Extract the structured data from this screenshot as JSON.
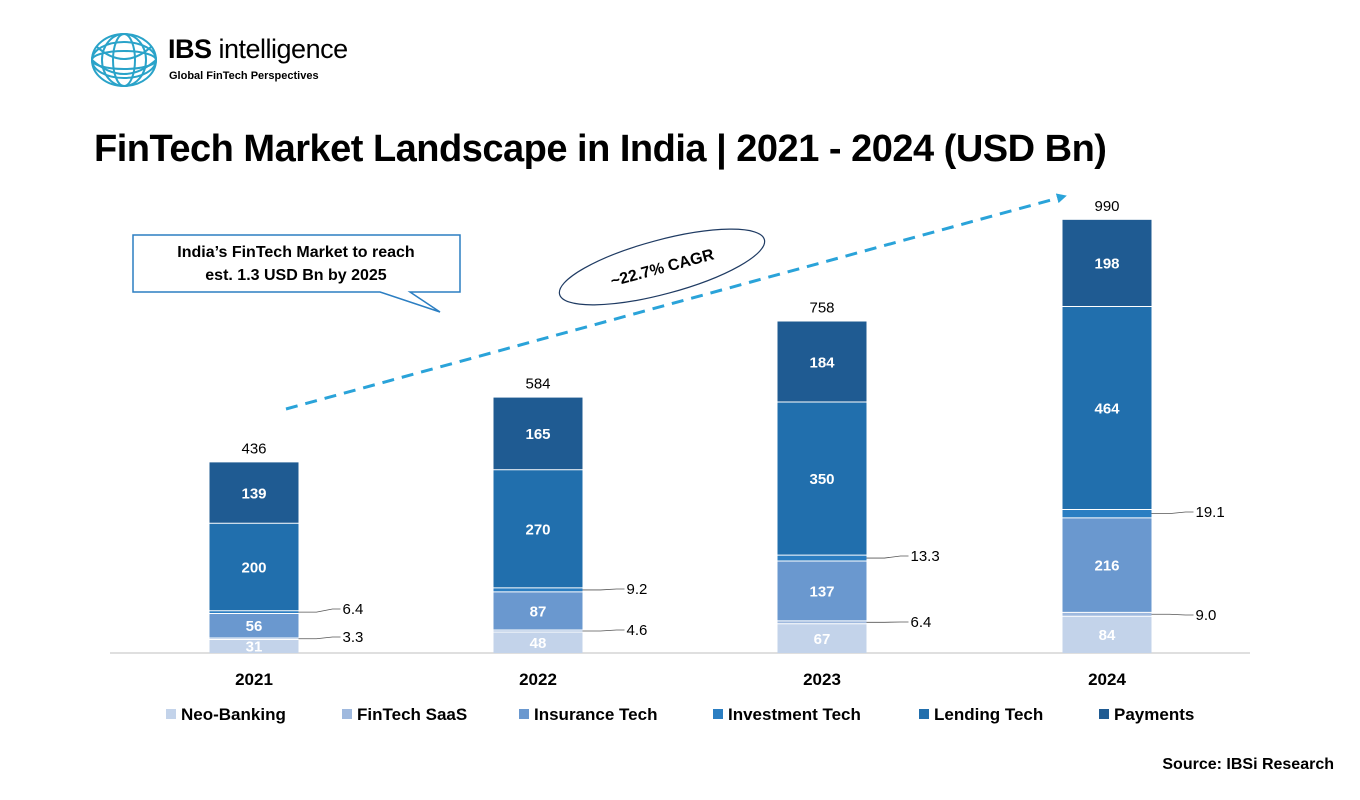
{
  "brand": {
    "name_bold": "IBS",
    "name_rest": " intelligence",
    "tagline": "Global FinTech Perspectives",
    "logo_icon": "globe-icon",
    "logo_color": "#2aa3c9"
  },
  "chart_data": {
    "type": "bar",
    "stacked": true,
    "title": "FinTech Market Landscape in India | 2021 - 2024 (USD Bn)",
    "categories": [
      "2021",
      "2022",
      "2023",
      "2024"
    ],
    "series": [
      {
        "name": "Neo-Banking",
        "color": "#c3d3ea",
        "values": [
          31,
          48,
          67,
          84
        ],
        "labels": [
          "31",
          "48",
          "67",
          "84"
        ]
      },
      {
        "name": "FinTech SaaS",
        "color": "#9fb9de",
        "values": [
          3.3,
          4.6,
          6.4,
          9.0
        ],
        "labels": [
          "3.3",
          "4.6",
          "6.4",
          "9.0"
        ]
      },
      {
        "name": "Insurance Tech",
        "color": "#6a98cf",
        "values": [
          56,
          87,
          137,
          216
        ],
        "labels": [
          "56",
          "87",
          "137",
          "216"
        ]
      },
      {
        "name": "Investment Tech",
        "color": "#2b7ec2",
        "values": [
          6.4,
          9.2,
          13.3,
          19.1
        ],
        "labels": [
          "6.4",
          "9.2",
          "13.3",
          "19.1"
        ]
      },
      {
        "name": "Lending Tech",
        "color": "#216fad",
        "values": [
          200,
          270,
          350,
          464
        ],
        "labels": [
          "200",
          "270",
          "350",
          "464"
        ]
      },
      {
        "name": "Payments",
        "color": "#1f5b92",
        "values": [
          139,
          165,
          184,
          198
        ],
        "labels": [
          "139",
          "165",
          "184",
          "198"
        ]
      }
    ],
    "totals": [
      "436",
      "584",
      "758",
      "990"
    ],
    "ylim": [
      0,
      1000
    ],
    "grid": false,
    "legend": "bottom",
    "annotations": {
      "cagr": "~22.7% CAGR",
      "callout": [
        "India’s FinTech Market to reach",
        "est. 1.3 USD Bn by 2025"
      ],
      "arrow_color": "#2aa3d9"
    }
  },
  "source": "Source: IBSi Research"
}
